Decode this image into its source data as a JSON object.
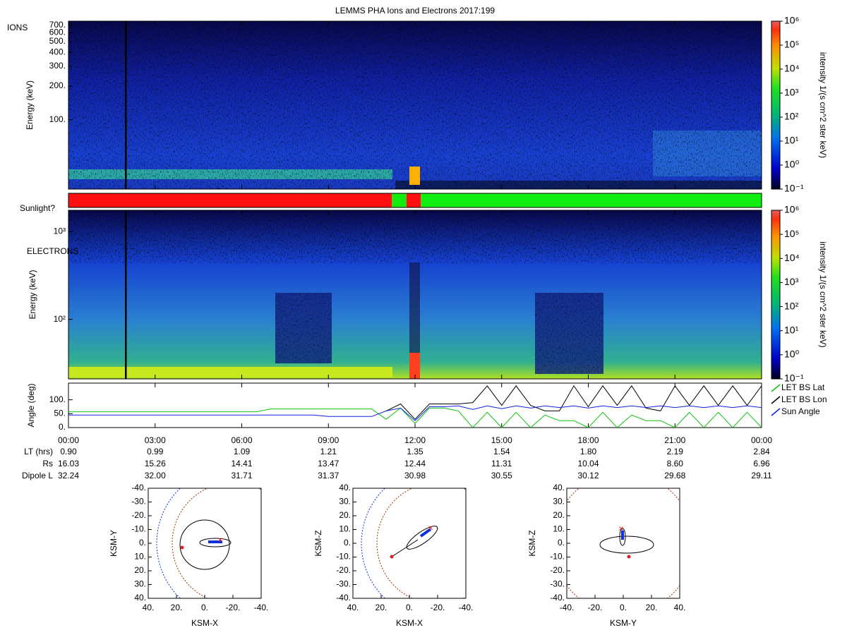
{
  "title": "LEMMS PHA Ions and Electrons  2017:199",
  "chart_data": [
    {
      "type": "heatmap",
      "label": "IONS",
      "ylabel": "Energy (keV)",
      "yscale": "log",
      "ylim": [
        24,
        760
      ],
      "yticks": [
        {
          "value": 100,
          "label": "100."
        },
        {
          "value": 200,
          "label": "200."
        },
        {
          "value": 300,
          "label": "300."
        },
        {
          "value": 400,
          "label": "400."
        },
        {
          "value": 500,
          "label": "500."
        },
        {
          "value": 600,
          "label": "600."
        },
        {
          "value": 700,
          "label": "700."
        }
      ],
      "colorbar": {
        "label": "intensity 1/(s cm^2 ster keV)",
        "scale": "log",
        "lim": [
          0.1,
          1000000
        ],
        "ticks": [
          {
            "value": 0.1,
            "label": "10⁻¹"
          },
          {
            "value": 1,
            "label": "10⁰"
          },
          {
            "value": 10,
            "label": "10¹"
          },
          {
            "value": 100,
            "label": "10²"
          },
          {
            "value": 1000,
            "label": "10³"
          },
          {
            "value": 10000,
            "label": "10⁴"
          },
          {
            "value": 100000,
            "label": "10⁵"
          },
          {
            "value": 1000000,
            "label": "10⁶"
          }
        ]
      }
    },
    {
      "type": "timeline",
      "label": "Sunlight?",
      "xlim": [
        0,
        24
      ],
      "segments": [
        {
          "start": 0,
          "end": 11.2,
          "color": "#ff1010"
        },
        {
          "start": 11.2,
          "end": 11.7,
          "color": "#10ee10"
        },
        {
          "start": 11.7,
          "end": 12.2,
          "color": "#ff1010"
        },
        {
          "start": 12.2,
          "end": 24,
          "color": "#10ee10"
        }
      ]
    },
    {
      "type": "heatmap",
      "label": "ELECTRONS",
      "ylabel": "Energy (keV)",
      "yscale": "log",
      "ylim": [
        21,
        1750
      ],
      "yticks": [
        {
          "value": 100,
          "label": "10²"
        },
        {
          "value": 1000,
          "label": "10³"
        }
      ],
      "colorbar": {
        "label": "intensity 1/(s cm^2 ster keV)",
        "scale": "log",
        "lim": [
          0.1,
          1000000
        ],
        "ticks": [
          {
            "value": 0.1,
            "label": "10⁻¹"
          },
          {
            "value": 1,
            "label": "10⁰"
          },
          {
            "value": 10,
            "label": "10¹"
          },
          {
            "value": 100,
            "label": "10²"
          },
          {
            "value": 1000,
            "label": "10³"
          },
          {
            "value": 10000,
            "label": "10⁴"
          },
          {
            "value": 100000,
            "label": "10⁵"
          },
          {
            "value": 1000000,
            "label": "10⁶"
          }
        ]
      }
    },
    {
      "type": "line",
      "ylabel": "Angle (deg)",
      "xlim": [
        0,
        24
      ],
      "ylim": [
        0,
        160
      ],
      "legend": "right",
      "yticks": [
        {
          "value": 0,
          "label": "0."
        },
        {
          "value": 50,
          "label": "50."
        },
        {
          "value": 100,
          "label": "100."
        }
      ],
      "xticks": [
        {
          "value": 0,
          "label": "00:00"
        },
        {
          "value": 3,
          "label": "03:00"
        },
        {
          "value": 6,
          "label": "06:00"
        },
        {
          "value": 9,
          "label": "09:00"
        },
        {
          "value": 12,
          "label": "12:00"
        },
        {
          "value": 15,
          "label": "15:00"
        },
        {
          "value": 18,
          "label": "18:00"
        },
        {
          "value": 21,
          "label": "21:00"
        },
        {
          "value": 24,
          "label": "00:00"
        }
      ],
      "x": [
        0,
        0.5,
        1,
        1.5,
        2,
        2.5,
        3,
        3.5,
        4,
        4.5,
        5,
        5.5,
        6,
        6.5,
        7,
        7.5,
        8,
        8.5,
        9,
        9.5,
        10,
        10.5,
        11,
        11.5,
        12,
        12.5,
        13,
        13.5,
        14,
        14.5,
        15,
        15.5,
        16,
        16.5,
        17,
        17.5,
        18,
        18.5,
        19,
        19.5,
        20,
        20.5,
        21,
        21.5,
        22,
        22.5,
        23,
        23.5,
        24
      ],
      "series": [
        {
          "name": "LET BS Lat",
          "color": "#10c010",
          "values": [
            57,
            57,
            57,
            57,
            57,
            57,
            57,
            57,
            57,
            57,
            57,
            57,
            57,
            57,
            67,
            67,
            67,
            67,
            67,
            67,
            67,
            67,
            30,
            70,
            15,
            70,
            70,
            60,
            0,
            55,
            0,
            55,
            0,
            45,
            25,
            25,
            0,
            55,
            0,
            45,
            25,
            25,
            0,
            55,
            0,
            55,
            0,
            55,
            0
          ]
        },
        {
          "name": "LET BS Lon",
          "color": "#000000",
          "values": [
            null,
            null,
            null,
            null,
            null,
            null,
            null,
            null,
            null,
            null,
            null,
            null,
            null,
            null,
            null,
            null,
            null,
            null,
            null,
            null,
            null,
            null,
            60,
            85,
            30,
            85,
            85,
            85,
            90,
            150,
            80,
            150,
            80,
            60,
            60,
            150,
            75,
            150,
            80,
            150,
            70,
            60,
            150,
            80,
            150,
            80,
            150,
            80,
            150
          ]
        },
        {
          "name": "Sun Angle",
          "color": "#1020e0",
          "values": [
            45,
            45,
            45,
            45,
            45,
            45,
            45,
            45,
            45,
            45,
            45,
            45,
            45,
            45,
            45,
            45,
            45,
            45,
            40,
            40,
            40,
            40,
            60,
            70,
            25,
            75,
            75,
            78,
            65,
            78,
            68,
            78,
            70,
            78,
            72,
            78,
            70,
            78,
            72,
            78,
            72,
            78,
            72,
            78,
            72,
            78,
            72,
            78,
            72
          ]
        }
      ]
    },
    {
      "type": "orbit",
      "xlabel": "KSM-X",
      "ylabel": "KSM-Y",
      "xlim": [
        40,
        -40
      ],
      "ylim": [
        40,
        -40
      ],
      "xticks": [
        {
          "value": 40,
          "label": "40."
        },
        {
          "value": 20,
          "label": "20."
        },
        {
          "value": 0,
          "label": "0."
        },
        {
          "value": -20,
          "label": "-20."
        },
        {
          "value": -40,
          "label": "-40."
        }
      ],
      "yticks": [
        {
          "value": -40,
          "label": "-40."
        },
        {
          "value": -30,
          "label": "-30."
        },
        {
          "value": -20,
          "label": "-20."
        },
        {
          "value": -10,
          "label": "-10."
        },
        {
          "value": 0,
          "label": "0."
        },
        {
          "value": 10,
          "label": "10."
        },
        {
          "value": 20,
          "label": "20."
        },
        {
          "value": 30,
          "label": "30."
        },
        {
          "value": 40,
          "label": "40."
        }
      ]
    },
    {
      "type": "orbit",
      "xlabel": "KSM-X",
      "ylabel": "KSM-Z",
      "xlim": [
        40,
        -40
      ],
      "ylim": [
        -40,
        40
      ],
      "xticks": [
        {
          "value": 40,
          "label": "40."
        },
        {
          "value": 20,
          "label": "20."
        },
        {
          "value": 0,
          "label": "0."
        },
        {
          "value": -20,
          "label": "-20."
        },
        {
          "value": -40,
          "label": "-40."
        }
      ],
      "yticks": [
        {
          "value": 40,
          "label": "40."
        },
        {
          "value": 30,
          "label": "30."
        },
        {
          "value": 20,
          "label": "20."
        },
        {
          "value": 10,
          "label": "10."
        },
        {
          "value": 0,
          "label": "0."
        },
        {
          "value": -10,
          "label": "-10."
        },
        {
          "value": -20,
          "label": "-20."
        },
        {
          "value": -30,
          "label": "-30."
        },
        {
          "value": -40,
          "label": "-40."
        }
      ]
    },
    {
      "type": "orbit",
      "xlabel": "KSM-Y",
      "ylabel": "KSM-Z",
      "xlim": [
        -40,
        40
      ],
      "ylim": [
        -40,
        40
      ],
      "xticks": [
        {
          "value": -40,
          "label": "-40."
        },
        {
          "value": -20,
          "label": "-20."
        },
        {
          "value": 0,
          "label": "0."
        },
        {
          "value": 20,
          "label": "20."
        },
        {
          "value": 40,
          "label": "40."
        }
      ],
      "yticks": [
        {
          "value": 40,
          "label": "40."
        },
        {
          "value": 30,
          "label": "30."
        },
        {
          "value": 20,
          "label": "20."
        },
        {
          "value": 10,
          "label": "10."
        },
        {
          "value": 0,
          "label": "0."
        },
        {
          "value": -10,
          "label": "-10."
        },
        {
          "value": -20,
          "label": "-20."
        },
        {
          "value": -30,
          "label": "-30."
        },
        {
          "value": -40,
          "label": "-40."
        }
      ]
    }
  ],
  "ephemeris": {
    "rows": [
      {
        "label": "LT (hrs)",
        "values": [
          "0.90",
          "0.99",
          "1.09",
          "1.21",
          "1.35",
          "1.54",
          "1.80",
          "2.19",
          "2.84"
        ]
      },
      {
        "label": "Rs",
        "values": [
          "16.03",
          "15.26",
          "14.41",
          "13.47",
          "12.44",
          "11.31",
          "10.04",
          "8.60",
          "6.96"
        ]
      },
      {
        "label": "Dipole L",
        "values": [
          "32.24",
          "32.00",
          "31.71",
          "31.37",
          "30.98",
          "30.55",
          "30.12",
          "29.68",
          "29.11"
        ]
      }
    ]
  }
}
